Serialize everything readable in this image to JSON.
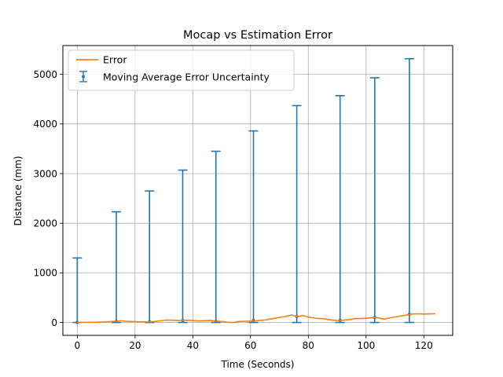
{
  "chart_data": {
    "type": "line",
    "title": "Mocap vs Estimation Error",
    "xlabel": "Time (Seconds)",
    "ylabel": "Distance (mm)",
    "xlim": [
      -5,
      130
    ],
    "ylim": [
      -260,
      5580
    ],
    "xticks": [
      0,
      20,
      40,
      60,
      80,
      100,
      120
    ],
    "yticks": [
      0,
      1000,
      2000,
      3000,
      4000,
      5000
    ],
    "grid": true,
    "legend_position": "top-left",
    "series": [
      {
        "name": "Error",
        "color": "#ff7f0e",
        "x": [
          0,
          2,
          4,
          6,
          8,
          10,
          12,
          13.5,
          15,
          17,
          19,
          21,
          23,
          25,
          27,
          29,
          31,
          33,
          35,
          36.5,
          38,
          40,
          42,
          44,
          46,
          48,
          50,
          52,
          54,
          56,
          58,
          61,
          63,
          65,
          67,
          69,
          71,
          73,
          74,
          75,
          76,
          77,
          78,
          80,
          82,
          84,
          86,
          88,
          90,
          91,
          92,
          94,
          96,
          98,
          100,
          102,
          103,
          104,
          105,
          106,
          107,
          108,
          110,
          112,
          114,
          115,
          116,
          118,
          120,
          122,
          124
        ],
        "y": [
          0,
          3,
          5,
          4,
          8,
          12,
          20,
          25,
          35,
          25,
          20,
          15,
          12,
          15,
          20,
          35,
          50,
          45,
          40,
          42,
          45,
          40,
          30,
          35,
          40,
          30,
          20,
          5,
          0,
          20,
          25,
          30,
          40,
          50,
          70,
          90,
          110,
          130,
          150,
          140,
          120,
          125,
          140,
          110,
          90,
          80,
          70,
          50,
          40,
          35,
          45,
          55,
          75,
          80,
          85,
          95,
          100,
          95,
          85,
          70,
          75,
          90,
          110,
          130,
          150,
          160,
          170,
          175,
          170,
          172,
          175
        ]
      },
      {
        "name": "Moving Average Error Uncertainty",
        "color": "#1f77b4",
        "type": "errorbar",
        "x": [
          0,
          13.5,
          25,
          36.5,
          48,
          61,
          76,
          91,
          103,
          115
        ],
        "y": [
          0,
          20,
          15,
          40,
          25,
          40,
          120,
          40,
          100,
          165
        ],
        "yerr_lower": [
          0,
          20,
          15,
          40,
          25,
          40,
          120,
          40,
          100,
          165
        ],
        "yerr_upper": [
          1300,
          2210,
          2635,
          3030,
          3425,
          3820,
          4250,
          4530,
          4830,
          5150
        ]
      }
    ]
  }
}
